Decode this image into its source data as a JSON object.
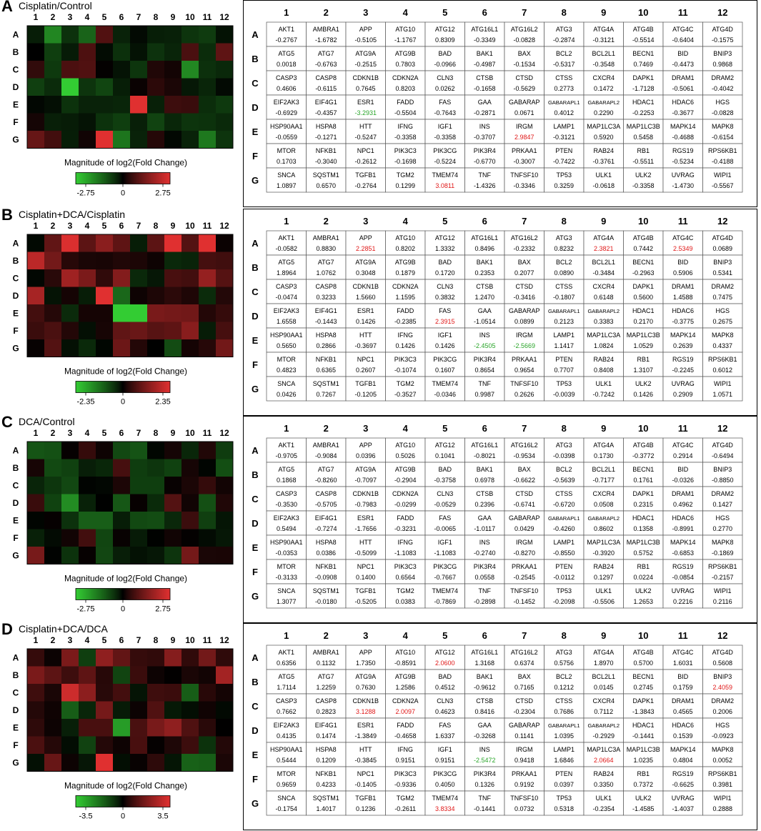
{
  "colors": {
    "low": "#33cc33",
    "mid": "#000000",
    "high": "#e03030",
    "neg_text": "#2aa52a",
    "pos_text": "#e01818"
  },
  "columns": [
    "1",
    "2",
    "3",
    "4",
    "5",
    "6",
    "7",
    "8",
    "9",
    "10",
    "11",
    "12"
  ],
  "rows": [
    "A",
    "B",
    "C",
    "D",
    "E",
    "F",
    "G"
  ],
  "genes": [
    [
      "AKT1",
      "AMBRA1",
      "APP",
      "ATG10",
      "ATG12",
      "ATG16L1",
      "ATG16L2",
      "ATG3",
      "ATG4A",
      "ATG4B",
      "ATG4C",
      "ATG4D"
    ],
    [
      "ATG5",
      "ATG7",
      "ATG9A",
      "ATG9B",
      "BAD",
      "BAK1",
      "BAX",
      "BCL2",
      "BCL2L1",
      "BECN1",
      "BID",
      "BNIP3"
    ],
    [
      "CASP3",
      "CASP8",
      "CDKN1B",
      "CDKN2A",
      "CLN3",
      "CTSB",
      "CTSD",
      "CTSS",
      "CXCR4",
      "DAPK1",
      "DRAM1",
      "DRAM2"
    ],
    [
      "EIF2AK3",
      "EIF4G1",
      "ESR1",
      "FADD",
      "FAS",
      "GAA",
      "GABARAP",
      "GABARAPL1",
      "GABARAPL2",
      "HDAC1",
      "HDAC6",
      "HGS"
    ],
    [
      "HSP90AA1",
      "HSPA8",
      "HTT",
      "IFNG",
      "IGF1",
      "INS",
      "IRGM",
      "LAMP1",
      "MAP1LC3A",
      "MAP1LC3B",
      "MAPK14",
      "MAPK8"
    ],
    [
      "MTOR",
      "NFKB1",
      "NPC1",
      "PIK3C3",
      "PIK3CG",
      "PIK3R4",
      "PRKAA1",
      "PTEN",
      "RAB24",
      "RB1",
      "RGS19",
      "RPS6KB1"
    ],
    [
      "SNCA",
      "SQSTM1",
      "TGFB1",
      "TGM2",
      "TMEM74",
      "TNF",
      "TNFSF10",
      "TP53",
      "ULK1",
      "ULK2",
      "UVRAG",
      "WIPI1"
    ]
  ],
  "legend_title": "Magnitude of log2(Fold Change)",
  "chart_data": [
    {
      "type": "heatmap",
      "panel_letter": "A",
      "title": "Cisplatin/Control",
      "scale": {
        "min": "-2.75",
        "mid": "0",
        "max": "2.75",
        "limit": 2.75
      },
      "values": [
        [
          "-0.2767",
          "-1.6782",
          "-0.5105",
          "-1.1767",
          "0.8309",
          "-0.3349",
          "-0.0828",
          "-0.2874",
          "-0.3121",
          "-0.5514",
          "-0.6404",
          "-0.1575"
        ],
        [
          "0.0018",
          "-0.6763",
          "-0.2515",
          "0.7803",
          "-0.0966",
          "-0.4987",
          "-0.1534",
          "-0.5317",
          "-0.3548",
          "0.7469",
          "-0.4473",
          "0.9868"
        ],
        [
          "0.4606",
          "-0.6115",
          "0.7645",
          "0.8203",
          "0.0262",
          "-0.1658",
          "-0.5629",
          "0.2773",
          "0.1472",
          "-1.7128",
          "-0.5061",
          "-0.4042"
        ],
        [
          "-0.6929",
          "-0.4357",
          "-3.2931",
          "-0.5504",
          "-0.7643",
          "-0.2871",
          "0.0671",
          "0.4012",
          "0.2290",
          "-0.2253",
          "-0.3677",
          "-0.0828"
        ],
        [
          "-0.0559",
          "-0.1271",
          "-0.5247",
          "-0.3358",
          "-0.3358",
          "-0.3707",
          "2.9847",
          "-0.3121",
          "0.5920",
          "0.5458",
          "-0.4688",
          "-0.6154"
        ],
        [
          "0.1703",
          "-0.3040",
          "-0.2612",
          "-0.1698",
          "-0.5224",
          "-0.6770",
          "-0.3007",
          "-0.7422",
          "-0.3761",
          "-0.5511",
          "-0.5234",
          "-0.4188"
        ],
        [
          "1.0897",
          "0.6570",
          "-0.2764",
          "0.1299",
          "3.0811",
          "-1.4326",
          "-0.3346",
          "0.3259",
          "-0.0618",
          "-0.3358",
          "-1.4730",
          "-0.5567"
        ]
      ]
    },
    {
      "type": "heatmap",
      "panel_letter": "B",
      "title": "Cisplatin+DCA/Cisplatin",
      "scale": {
        "min": "-2.35",
        "mid": "0",
        "max": "2.35",
        "limit": 2.35
      },
      "values": [
        [
          "-0.0582",
          "0.8830",
          "2.2851",
          "0.8202",
          "1.3332",
          "0.8496",
          "-0.2332",
          "0.8232",
          "2.3821",
          "0.7442",
          "2.5349",
          "0.0689"
        ],
        [
          "1.8964",
          "1.0762",
          "0.3048",
          "0.1879",
          "0.1720",
          "0.2353",
          "0.2077",
          "0.0890",
          "-0.3484",
          "-0.2963",
          "0.5906",
          "0.5341"
        ],
        [
          "-0.0474",
          "0.3233",
          "1.5660",
          "1.1595",
          "0.3832",
          "1.2470",
          "-0.3416",
          "-0.1807",
          "0.6148",
          "0.5600",
          "1.4588",
          "0.7475"
        ],
        [
          "1.6558",
          "-0.1443",
          "0.1426",
          "-0.2385",
          "2.3915",
          "-1.0514",
          "0.0899",
          "0.2123",
          "0.3383",
          "0.2170",
          "-0.3775",
          "0.2675"
        ],
        [
          "0.5650",
          "0.2866",
          "-0.3697",
          "0.1426",
          "0.1426",
          "-2.4505",
          "-2.5669",
          "1.1417",
          "1.0824",
          "1.0529",
          "0.2639",
          "0.4337"
        ],
        [
          "0.4823",
          "0.6365",
          "0.2607",
          "-0.1074",
          "0.1607",
          "0.8654",
          "0.9654",
          "0.7707",
          "0.8408",
          "1.3107",
          "-0.2245",
          "0.6012"
        ],
        [
          "0.0426",
          "0.7267",
          "-0.1205",
          "-0.3527",
          "-0.0346",
          "0.9987",
          "0.2626",
          "-0.0039",
          "-0.7242",
          "0.1426",
          "0.2909",
          "1.0571"
        ]
      ]
    },
    {
      "type": "heatmap",
      "panel_letter": "C",
      "title": "DCA/Control",
      "scale": {
        "min": "-2.75",
        "mid": "0",
        "max": "2.75",
        "limit": 2.75
      },
      "values": [
        [
          "-0.9705",
          "-0.9084",
          "0.0396",
          "0.5026",
          "0.1041",
          "-0.8021",
          "-0.9534",
          "-0.0398",
          "0.1730",
          "-0.3772",
          "0.2914",
          "-0.6494"
        ],
        [
          "0.1868",
          "-0.8260",
          "-0.7097",
          "-0.2904",
          "-0.3758",
          "0.6978",
          "-0.6622",
          "-0.5639",
          "-0.7177",
          "0.1761",
          "-0.0326",
          "-0.8850"
        ],
        [
          "-0.3530",
          "-0.5705",
          "-0.7983",
          "-0.0299",
          "-0.0529",
          "0.2396",
          "-0.6741",
          "-0.6720",
          "0.0508",
          "0.2315",
          "0.4962",
          "0.1427"
        ],
        [
          "0.5494",
          "-0.7274",
          "-1.7656",
          "-0.3231",
          "-0.0065",
          "-1.0117",
          "0.0429",
          "-0.4260",
          "0.8602",
          "0.1358",
          "-0.8991",
          "0.2770"
        ],
        [
          "-0.0353",
          "0.0386",
          "-0.5099",
          "-1.1083",
          "-1.1083",
          "-0.2740",
          "-0.8270",
          "-0.8550",
          "-0.3920",
          "0.5752",
          "-0.6853",
          "-0.1869"
        ],
        [
          "-0.3133",
          "-0.0908",
          "0.1400",
          "0.6564",
          "-0.7667",
          "0.0558",
          "-0.2545",
          "-0.0112",
          "0.1297",
          "0.0224",
          "-0.0854",
          "-0.2157"
        ],
        [
          "1.3077",
          "-0.0180",
          "-0.5205",
          "0.0383",
          "-0.7869",
          "-0.2898",
          "-0.1452",
          "-0.2098",
          "-0.5506",
          "1.2653",
          "0.2216",
          "0.2116"
        ]
      ]
    },
    {
      "type": "heatmap",
      "panel_letter": "D",
      "title": "Cisplatin+DCA/DCA",
      "scale": {
        "min": "-3.5",
        "mid": "0",
        "max": "3.5",
        "limit": 3.5
      },
      "values": [
        [
          "0.6356",
          "0.1132",
          "1.7350",
          "-0.8591",
          "2.0600",
          "1.3168",
          "0.6374",
          "0.5756",
          "1.8970",
          "0.5700",
          "1.6031",
          "0.5608"
        ],
        [
          "1.7114",
          "1.2259",
          "0.7630",
          "1.2586",
          "0.4512",
          "-0.9612",
          "0.7165",
          "0.1212",
          "0.0145",
          "0.2745",
          "0.1759",
          "2.4059"
        ],
        [
          "0.7662",
          "0.2823",
          "3.1288",
          "2.0097",
          "0.4623",
          "0.8416",
          "-0.2304",
          "0.7686",
          "0.7112",
          "-1.3843",
          "0.4565",
          "0.2006"
        ],
        [
          "0.4135",
          "0.1474",
          "-1.3849",
          "-0.4658",
          "1.6337",
          "-0.3268",
          "0.1141",
          "1.0395",
          "-0.2929",
          "-0.1441",
          "0.1539",
          "-0.0923"
        ],
        [
          "0.5444",
          "0.1209",
          "-0.3845",
          "0.9151",
          "0.9151",
          "-2.5472",
          "0.9418",
          "1.6846",
          "2.0664",
          "1.0235",
          "0.4804",
          "0.0052"
        ],
        [
          "0.9659",
          "0.4233",
          "-0.1405",
          "-0.9336",
          "0.4050",
          "0.1326",
          "0.9192",
          "0.0397",
          "0.3350",
          "0.7372",
          "-0.6625",
          "0.3981"
        ],
        [
          "-0.1754",
          "1.4017",
          "0.1236",
          "-0.2611",
          "3.8334",
          "-0.1441",
          "0.0732",
          "0.5318",
          "-0.2354",
          "-1.4585",
          "-1.4037",
          "0.2888"
        ]
      ]
    }
  ]
}
